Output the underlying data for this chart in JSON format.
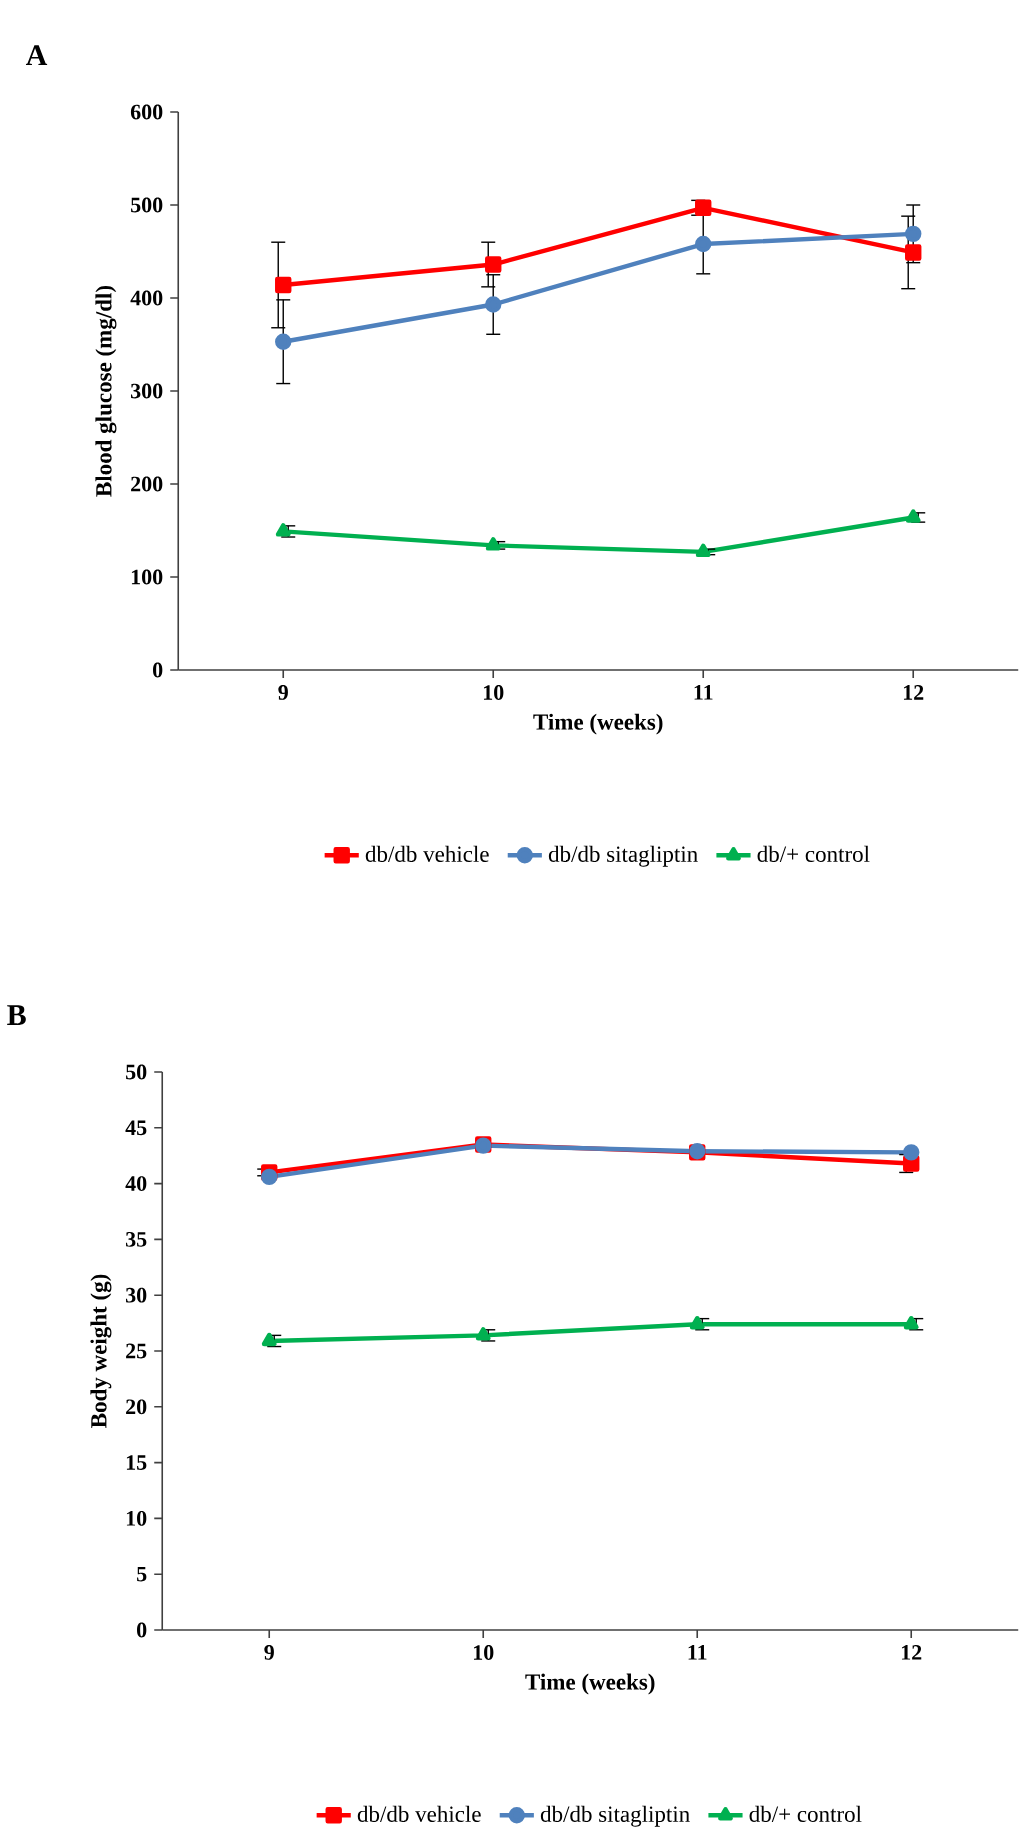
{
  "chart_data": [
    {
      "type": "line",
      "title": "A",
      "xlabel": "Time (weeks)",
      "ylabel": "Blood glucose (mg/dl)",
      "categories": [
        "9",
        "10",
        "11",
        "12"
      ],
      "ylim": [
        0,
        600
      ],
      "yticks": [
        0,
        100,
        200,
        300,
        400,
        500,
        600
      ],
      "legend": "bottom",
      "series": [
        {
          "name": "db/db vehicle",
          "color": "#ff0000",
          "marker": "square",
          "values": [
            414,
            436,
            497,
            449
          ],
          "errors": [
            46,
            24,
            8,
            39
          ]
        },
        {
          "name": "db/db sitagliptin",
          "color": "#4f81bd",
          "marker": "circle",
          "values": [
            353,
            393,
            458,
            469
          ],
          "errors": [
            45,
            32,
            32,
            31
          ]
        },
        {
          "name": "db/+ control",
          "color": "#00b050",
          "marker": "triangle",
          "values": [
            149,
            134,
            127,
            164
          ],
          "errors": [
            6,
            4,
            3,
            5
          ]
        }
      ]
    },
    {
      "type": "line",
      "title": "B",
      "xlabel": "Time (weeks)",
      "ylabel": "Body weight (g)",
      "categories": [
        "9",
        "10",
        "11",
        "12"
      ],
      "ylim": [
        0,
        50
      ],
      "yticks": [
        0,
        5,
        10,
        15,
        20,
        25,
        30,
        35,
        40,
        45,
        50
      ],
      "legend": "bottom",
      "series": [
        {
          "name": "db/db vehicle",
          "color": "#ff0000",
          "marker": "square",
          "values": [
            41.0,
            43.5,
            42.8,
            41.8
          ],
          "errors": [
            0.3,
            null,
            null,
            0.8
          ]
        },
        {
          "name": "db/db sitagliptin",
          "color": "#4f81bd",
          "marker": "circle",
          "values": [
            40.6,
            43.4,
            42.9,
            42.8
          ],
          "errors": [
            null,
            null,
            null,
            null
          ]
        },
        {
          "name": "db/+ control",
          "color": "#00b050",
          "marker": "triangle",
          "values": [
            25.9,
            26.4,
            27.4,
            27.4
          ],
          "errors": [
            0.5,
            0.5,
            0.5,
            0.5
          ]
        }
      ]
    }
  ]
}
